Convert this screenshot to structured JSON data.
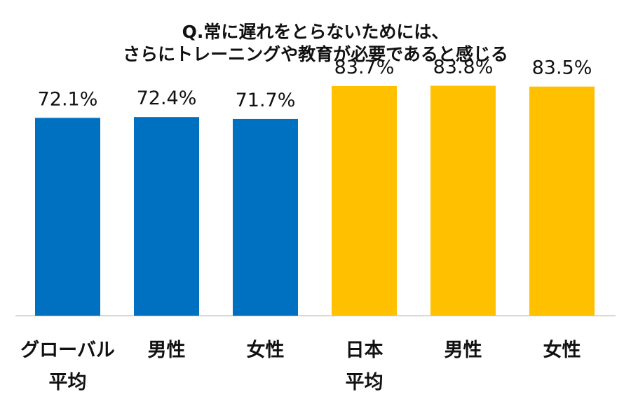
{
  "chart_data": {
    "type": "bar",
    "title_lines": [
      "Q.常に遅れをとらないためには、",
      "さらにトレーニングや教育が必要であると感じる"
    ],
    "categories": [
      "グローバル\n平均",
      "男性",
      "女性",
      "日本\n平均",
      "男性",
      "女性"
    ],
    "values": [
      72.1,
      72.4,
      71.7,
      83.7,
      83.8,
      83.5
    ],
    "value_labels": [
      "72.1%",
      "72.4%",
      "71.7%",
      "83.7%",
      "83.8%",
      "83.5%"
    ],
    "colors": [
      "#0070C0",
      "#0070C0",
      "#0070C0",
      "#FFC000",
      "#FFC000",
      "#FFC000"
    ],
    "groups": [
      "グローバル",
      "グローバル",
      "グローバル",
      "日本",
      "日本",
      "日本"
    ],
    "unit": "%",
    "xlabel": "",
    "ylabel": "",
    "ylim": [
      0,
      100
    ],
    "grid": false,
    "legend": "none"
  }
}
